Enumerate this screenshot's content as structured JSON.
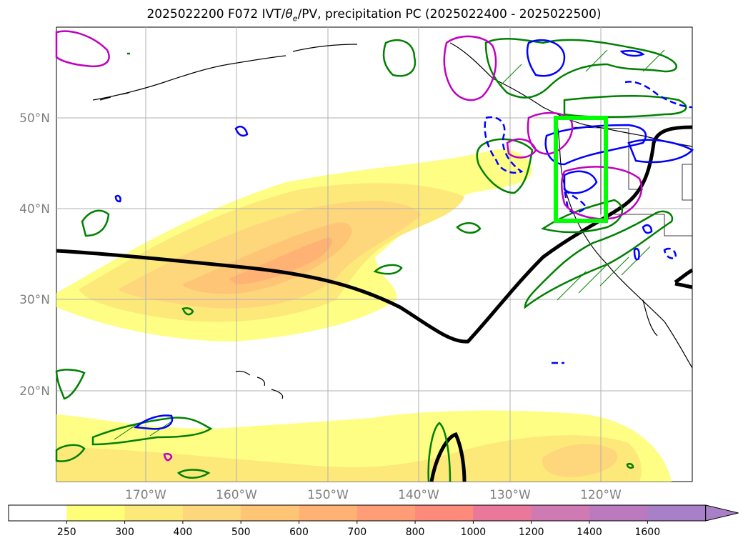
{
  "title": {
    "prefix": "2025022200 F072 IVT/",
    "theta": "θ",
    "theta_sub": "e",
    "suffix": "/PV, precipitation PC (2025022400 - 2025022500)"
  },
  "map": {
    "lat_labels": [
      "50°N",
      "40°N",
      "30°N",
      "20°N"
    ],
    "lon_labels": [
      "170°W",
      "160°W",
      "150°W",
      "140°W",
      "130°W",
      "120°W"
    ]
  },
  "colorbar": {
    "ticks": [
      "250",
      "300",
      "400",
      "500",
      "600",
      "700",
      "800",
      "1000",
      "1200",
      "1400",
      "1600"
    ],
    "colors": [
      "#ffffff",
      "#fefe78",
      "#fde87a",
      "#fed67b",
      "#ffc576",
      "#ffb274",
      "#fe9d76",
      "#fd8a7a",
      "#e9789a",
      "#cf7ab3",
      "#bb7ac0",
      "#a880c8"
    ],
    "extend": "max"
  },
  "overlays": {
    "ivt_fill": "#ffe87a",
    "theta_line_color": "#000000",
    "pv_colors": [
      "#008000",
      "#0000ff",
      "#c000c0"
    ],
    "box_color": "#00ff00"
  }
}
